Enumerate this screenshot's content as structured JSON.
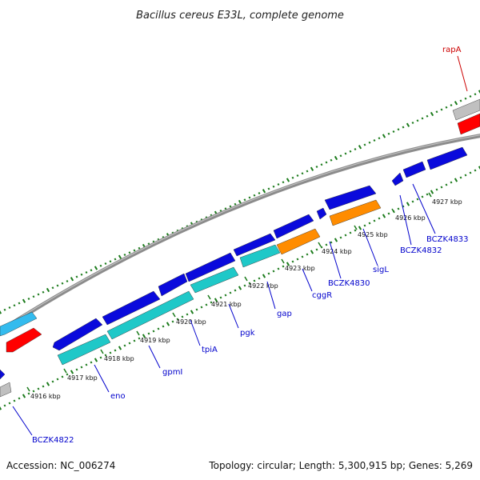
{
  "title": "Bacillus cereus E33L, complete genome",
  "accession": "Accession: NC_006274",
  "summary": "Topology: circular; Length: 5,300,915 bp; Genes: 5,269",
  "colors": {
    "forward_cds": "#0a0adc",
    "rrna_like": "#1fc8c8",
    "orange": "#ff8c00",
    "red": "#ff0000",
    "grey": "#c0c0c0",
    "light_blue": "#33bbee",
    "backbone": "#8c8c8c",
    "tick": "#1a7a1a",
    "label_blue": "#0000cc",
    "label_red": "#cc0000"
  },
  "kbp_ticks": [
    {
      "label": "4916 kbp"
    },
    {
      "label": "4917 kbp"
    },
    {
      "label": "4918 kbp"
    },
    {
      "label": "4919 kbp"
    },
    {
      "label": "4920 kbp"
    },
    {
      "label": "4921 kbp"
    },
    {
      "label": "4922 kbp"
    },
    {
      "label": "4923 kbp"
    },
    {
      "label": "4924 kbp"
    },
    {
      "label": "4925 kbp"
    },
    {
      "label": "4926 kbp"
    },
    {
      "label": "4927 kbp"
    }
  ],
  "gene_labels": [
    {
      "name": "BCZK4822",
      "color": "label_blue"
    },
    {
      "name": "eno",
      "color": "label_blue"
    },
    {
      "name": "gpmI",
      "color": "label_blue"
    },
    {
      "name": "tpiA",
      "color": "label_blue"
    },
    {
      "name": "pgk",
      "color": "label_blue"
    },
    {
      "name": "gap",
      "color": "label_blue"
    },
    {
      "name": "cggR",
      "color": "label_blue"
    },
    {
      "name": "BCZK4830",
      "color": "label_blue"
    },
    {
      "name": "sigL",
      "color": "label_blue"
    },
    {
      "name": "BCZK4832",
      "color": "label_blue"
    },
    {
      "name": "BCZK4833",
      "color": "label_blue"
    },
    {
      "name": "rapA",
      "color": "label_red"
    }
  ]
}
